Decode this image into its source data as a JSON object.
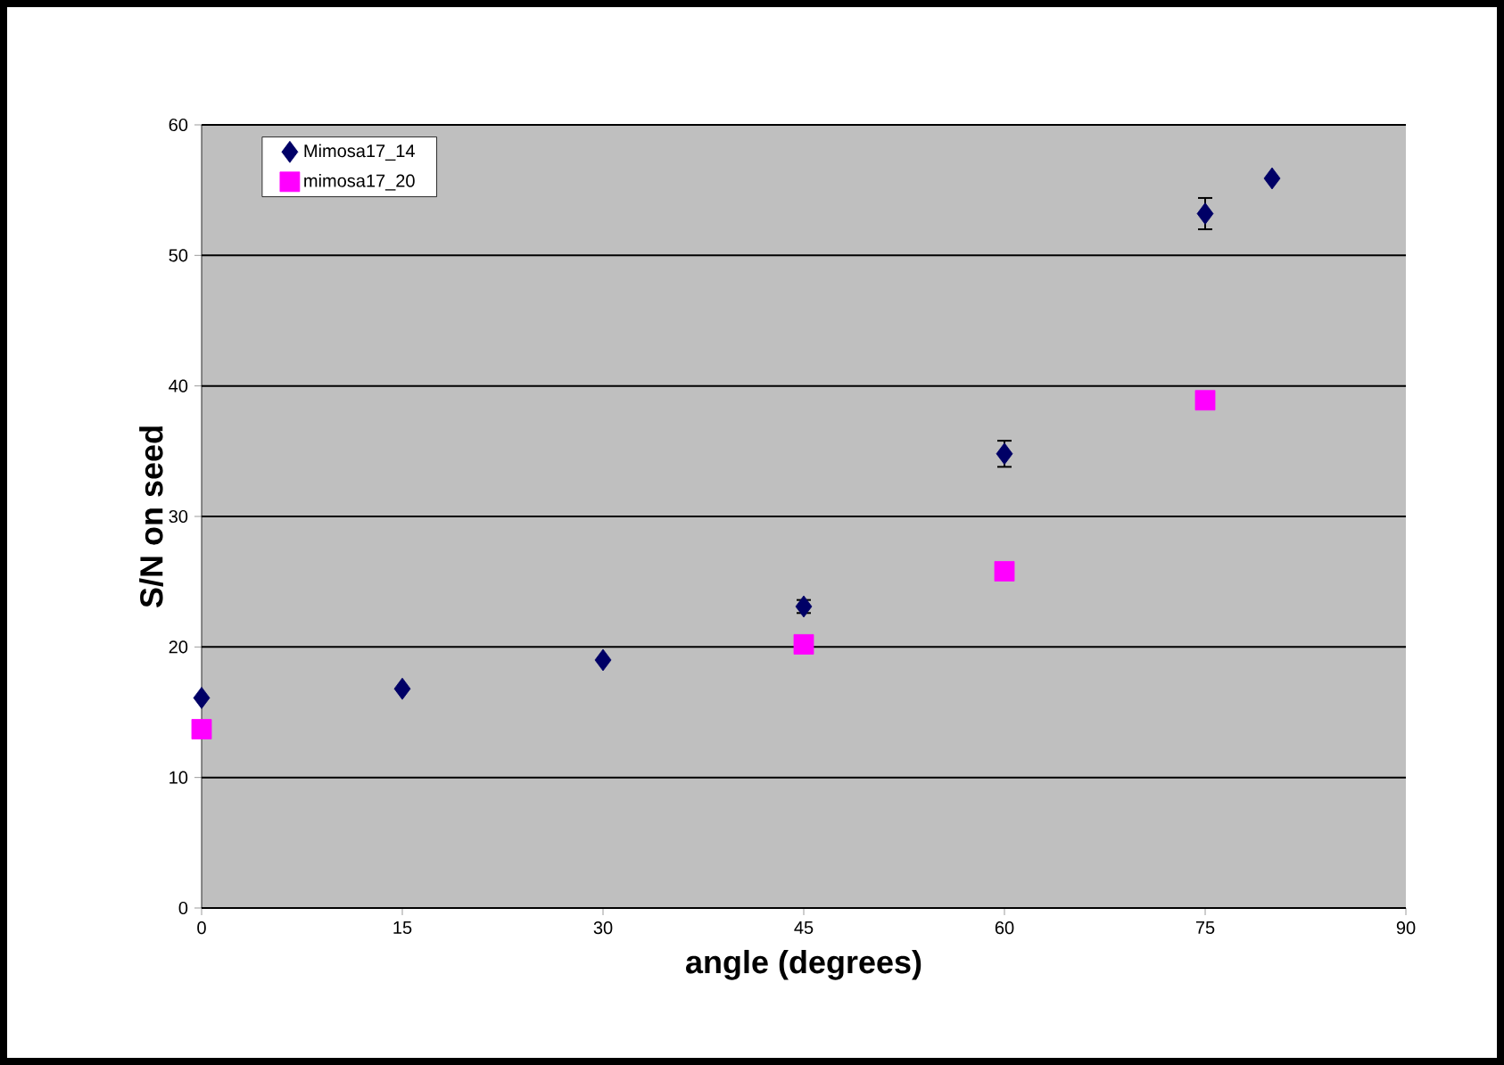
{
  "chart_data": {
    "type": "scatter",
    "xlabel": "angle (degrees)",
    "ylabel": "S/N on seed",
    "xlim": [
      0,
      90
    ],
    "xticks": [
      0,
      15,
      30,
      45,
      60,
      75,
      90
    ],
    "ylim": [
      0,
      60
    ],
    "yticks": [
      0,
      10,
      20,
      30,
      40,
      50,
      60
    ],
    "grid": "y",
    "legend": "top left",
    "series": [
      {
        "name": "Mimosa17_14",
        "color": "#000066",
        "marker": "diamond",
        "x": [
          0,
          15,
          30,
          45,
          60,
          75,
          80
        ],
        "values": [
          16.1,
          16.8,
          19.0,
          23.1,
          34.8,
          53.2,
          55.9
        ],
        "errors": [
          null,
          null,
          null,
          0.5,
          1.0,
          1.2,
          null
        ]
      },
      {
        "name": "mimosa17_20",
        "color": "#ff00ff",
        "marker": "square",
        "x": [
          0,
          45,
          60,
          75
        ],
        "values": [
          13.7,
          20.2,
          25.8,
          38.9
        ]
      }
    ]
  }
}
